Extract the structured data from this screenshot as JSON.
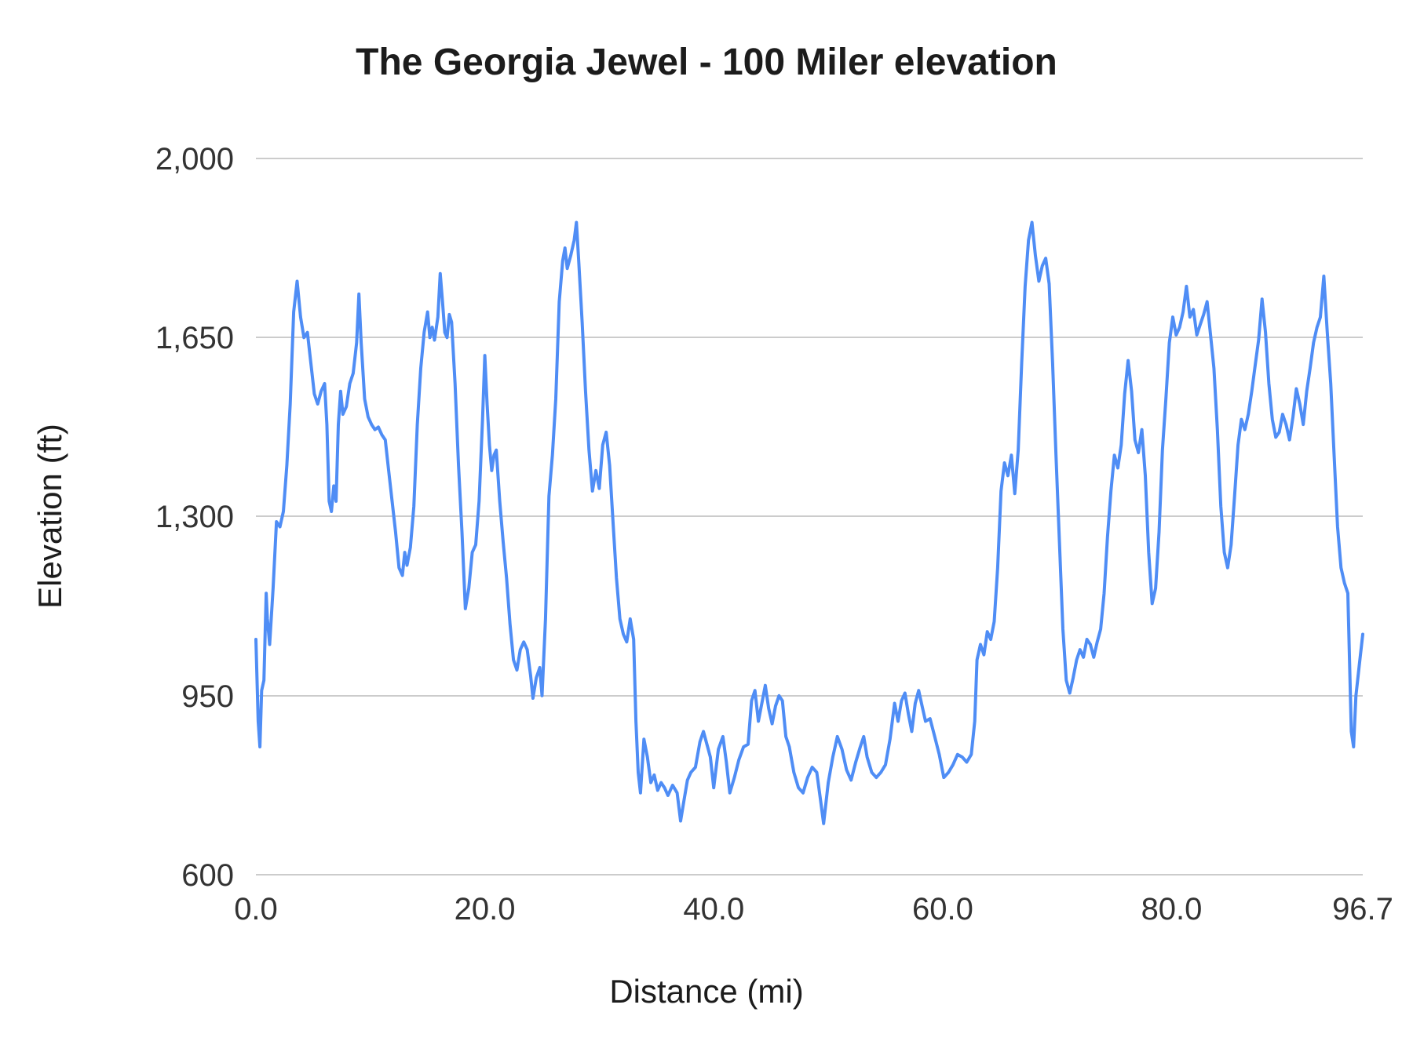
{
  "chart": {
    "title": "The Georgia Jewel - 100 Miler elevation",
    "xlabel": "Distance (mi)",
    "ylabel": "Elevation (ft)"
  },
  "chart_data": {
    "type": "line",
    "title": "The Georgia Jewel - 100 Miler elevation",
    "xlabel": "Distance (mi)",
    "ylabel": "Elevation (ft)",
    "xlim": [
      0,
      96.7
    ],
    "ylim": [
      600,
      2000
    ],
    "grid": "horizontal",
    "legend": "none",
    "line_color": "#4f8df5",
    "grid_color": "#cccccc",
    "xticks": [
      {
        "v": 0,
        "label": "0.0"
      },
      {
        "v": 20,
        "label": "20.0"
      },
      {
        "v": 40,
        "label": "40.0"
      },
      {
        "v": 60,
        "label": "60.0"
      },
      {
        "v": 80,
        "label": "80.0"
      },
      {
        "v": 96.7,
        "label": "96.7"
      }
    ],
    "yticks": [
      {
        "v": 600,
        "label": "600"
      },
      {
        "v": 950,
        "label": "950"
      },
      {
        "v": 1300,
        "label": "1,300"
      },
      {
        "v": 1650,
        "label": "1,650"
      },
      {
        "v": 2000,
        "label": "2,000"
      }
    ],
    "points": [
      [
        0,
        1060
      ],
      [
        0.2,
        900
      ],
      [
        0.35,
        850
      ],
      [
        0.5,
        960
      ],
      [
        0.7,
        980
      ],
      [
        0.9,
        1150
      ],
      [
        1.0,
        1100
      ],
      [
        1.2,
        1050
      ],
      [
        1.5,
        1160
      ],
      [
        1.8,
        1290
      ],
      [
        2.1,
        1280
      ],
      [
        2.4,
        1310
      ],
      [
        2.7,
        1400
      ],
      [
        3.0,
        1520
      ],
      [
        3.3,
        1700
      ],
      [
        3.6,
        1760
      ],
      [
        3.9,
        1690
      ],
      [
        4.2,
        1650
      ],
      [
        4.5,
        1660
      ],
      [
        4.8,
        1600
      ],
      [
        5.1,
        1540
      ],
      [
        5.4,
        1520
      ],
      [
        5.7,
        1545
      ],
      [
        6.0,
        1560
      ],
      [
        6.2,
        1480
      ],
      [
        6.4,
        1330
      ],
      [
        6.6,
        1310
      ],
      [
        6.8,
        1360
      ],
      [
        7.0,
        1330
      ],
      [
        7.2,
        1480
      ],
      [
        7.4,
        1545
      ],
      [
        7.6,
        1500
      ],
      [
        7.9,
        1515
      ],
      [
        8.2,
        1560
      ],
      [
        8.5,
        1580
      ],
      [
        8.8,
        1640
      ],
      [
        9.0,
        1735
      ],
      [
        9.2,
        1640
      ],
      [
        9.5,
        1530
      ],
      [
        9.8,
        1495
      ],
      [
        10.1,
        1480
      ],
      [
        10.4,
        1470
      ],
      [
        10.7,
        1475
      ],
      [
        11.0,
        1460
      ],
      [
        11.3,
        1450
      ],
      [
        11.6,
        1390
      ],
      [
        11.9,
        1330
      ],
      [
        12.2,
        1270
      ],
      [
        12.5,
        1200
      ],
      [
        12.8,
        1185
      ],
      [
        13.0,
        1230
      ],
      [
        13.2,
        1205
      ],
      [
        13.5,
        1240
      ],
      [
        13.8,
        1320
      ],
      [
        14.1,
        1480
      ],
      [
        14.4,
        1590
      ],
      [
        14.7,
        1660
      ],
      [
        15.0,
        1700
      ],
      [
        15.2,
        1650
      ],
      [
        15.4,
        1670
      ],
      [
        15.6,
        1645
      ],
      [
        15.9,
        1690
      ],
      [
        16.1,
        1775
      ],
      [
        16.3,
        1720
      ],
      [
        16.5,
        1660
      ],
      [
        16.7,
        1650
      ],
      [
        16.9,
        1695
      ],
      [
        17.1,
        1680
      ],
      [
        17.4,
        1560
      ],
      [
        17.7,
        1400
      ],
      [
        18.0,
        1270
      ],
      [
        18.3,
        1120
      ],
      [
        18.6,
        1160
      ],
      [
        18.9,
        1230
      ],
      [
        19.2,
        1245
      ],
      [
        19.5,
        1330
      ],
      [
        19.8,
        1490
      ],
      [
        20.0,
        1615
      ],
      [
        20.2,
        1520
      ],
      [
        20.4,
        1440
      ],
      [
        20.6,
        1390
      ],
      [
        20.8,
        1420
      ],
      [
        21.0,
        1430
      ],
      [
        21.3,
        1330
      ],
      [
        21.6,
        1250
      ],
      [
        21.9,
        1180
      ],
      [
        22.2,
        1090
      ],
      [
        22.5,
        1020
      ],
      [
        22.8,
        1000
      ],
      [
        23.1,
        1040
      ],
      [
        23.4,
        1055
      ],
      [
        23.7,
        1040
      ],
      [
        24.0,
        990
      ],
      [
        24.2,
        945
      ],
      [
        24.5,
        985
      ],
      [
        24.8,
        1005
      ],
      [
        25.0,
        950
      ],
      [
        25.3,
        1100
      ],
      [
        25.6,
        1340
      ],
      [
        25.9,
        1420
      ],
      [
        26.2,
        1530
      ],
      [
        26.5,
        1720
      ],
      [
        26.8,
        1800
      ],
      [
        27.0,
        1825
      ],
      [
        27.2,
        1785
      ],
      [
        27.5,
        1810
      ],
      [
        27.8,
        1840
      ],
      [
        28.0,
        1875
      ],
      [
        28.2,
        1800
      ],
      [
        28.5,
        1680
      ],
      [
        28.8,
        1545
      ],
      [
        29.1,
        1430
      ],
      [
        29.4,
        1350
      ],
      [
        29.7,
        1390
      ],
      [
        30.0,
        1355
      ],
      [
        30.3,
        1440
      ],
      [
        30.6,
        1465
      ],
      [
        30.9,
        1400
      ],
      [
        31.2,
        1290
      ],
      [
        31.5,
        1180
      ],
      [
        31.8,
        1100
      ],
      [
        32.1,
        1070
      ],
      [
        32.4,
        1055
      ],
      [
        32.7,
        1100
      ],
      [
        33.0,
        1060
      ],
      [
        33.2,
        900
      ],
      [
        33.4,
        800
      ],
      [
        33.6,
        760
      ],
      [
        33.9,
        865
      ],
      [
        34.2,
        830
      ],
      [
        34.5,
        780
      ],
      [
        34.8,
        795
      ],
      [
        35.1,
        765
      ],
      [
        35.4,
        780
      ],
      [
        35.7,
        770
      ],
      [
        36.0,
        755
      ],
      [
        36.4,
        775
      ],
      [
        36.8,
        760
      ],
      [
        37.1,
        705
      ],
      [
        37.4,
        745
      ],
      [
        37.7,
        785
      ],
      [
        38.0,
        800
      ],
      [
        38.4,
        810
      ],
      [
        38.8,
        860
      ],
      [
        39.1,
        880
      ],
      [
        39.4,
        855
      ],
      [
        39.7,
        830
      ],
      [
        40.0,
        770
      ],
      [
        40.4,
        845
      ],
      [
        40.8,
        870
      ],
      [
        41.1,
        820
      ],
      [
        41.4,
        760
      ],
      [
        41.8,
        790
      ],
      [
        42.2,
        825
      ],
      [
        42.6,
        850
      ],
      [
        43.0,
        855
      ],
      [
        43.3,
        940
      ],
      [
        43.6,
        960
      ],
      [
        43.9,
        900
      ],
      [
        44.2,
        935
      ],
      [
        44.5,
        970
      ],
      [
        44.8,
        925
      ],
      [
        45.1,
        895
      ],
      [
        45.4,
        930
      ],
      [
        45.7,
        950
      ],
      [
        46.0,
        940
      ],
      [
        46.3,
        870
      ],
      [
        46.6,
        850
      ],
      [
        47.0,
        800
      ],
      [
        47.4,
        770
      ],
      [
        47.8,
        760
      ],
      [
        48.2,
        790
      ],
      [
        48.6,
        810
      ],
      [
        49.0,
        800
      ],
      [
        49.3,
        750
      ],
      [
        49.6,
        700
      ],
      [
        50.0,
        780
      ],
      [
        50.4,
        830
      ],
      [
        50.8,
        870
      ],
      [
        51.2,
        845
      ],
      [
        51.6,
        805
      ],
      [
        52.0,
        785
      ],
      [
        52.4,
        820
      ],
      [
        52.8,
        850
      ],
      [
        53.1,
        870
      ],
      [
        53.4,
        830
      ],
      [
        53.8,
        800
      ],
      [
        54.2,
        790
      ],
      [
        54.6,
        800
      ],
      [
        55.0,
        815
      ],
      [
        55.4,
        865
      ],
      [
        55.8,
        935
      ],
      [
        56.1,
        900
      ],
      [
        56.4,
        940
      ],
      [
        56.7,
        955
      ],
      [
        57.0,
        915
      ],
      [
        57.3,
        880
      ],
      [
        57.6,
        935
      ],
      [
        57.9,
        960
      ],
      [
        58.2,
        930
      ],
      [
        58.5,
        900
      ],
      [
        58.9,
        905
      ],
      [
        59.3,
        870
      ],
      [
        59.7,
        835
      ],
      [
        60.1,
        790
      ],
      [
        60.5,
        800
      ],
      [
        60.9,
        815
      ],
      [
        61.3,
        835
      ],
      [
        61.7,
        830
      ],
      [
        62.1,
        820
      ],
      [
        62.5,
        835
      ],
      [
        62.8,
        900
      ],
      [
        63.0,
        1020
      ],
      [
        63.3,
        1050
      ],
      [
        63.6,
        1030
      ],
      [
        63.9,
        1075
      ],
      [
        64.2,
        1060
      ],
      [
        64.5,
        1095
      ],
      [
        64.8,
        1200
      ],
      [
        65.1,
        1350
      ],
      [
        65.4,
        1405
      ],
      [
        65.7,
        1380
      ],
      [
        66.0,
        1420
      ],
      [
        66.3,
        1345
      ],
      [
        66.6,
        1430
      ],
      [
        66.9,
        1600
      ],
      [
        67.2,
        1750
      ],
      [
        67.5,
        1840
      ],
      [
        67.8,
        1875
      ],
      [
        68.1,
        1810
      ],
      [
        68.4,
        1760
      ],
      [
        68.7,
        1790
      ],
      [
        69.0,
        1805
      ],
      [
        69.3,
        1755
      ],
      [
        69.6,
        1600
      ],
      [
        69.9,
        1420
      ],
      [
        70.2,
        1250
      ],
      [
        70.5,
        1080
      ],
      [
        70.8,
        980
      ],
      [
        71.1,
        955
      ],
      [
        71.4,
        985
      ],
      [
        71.7,
        1020
      ],
      [
        72.0,
        1040
      ],
      [
        72.3,
        1025
      ],
      [
        72.6,
        1060
      ],
      [
        72.9,
        1050
      ],
      [
        73.2,
        1025
      ],
      [
        73.5,
        1055
      ],
      [
        73.8,
        1080
      ],
      [
        74.1,
        1150
      ],
      [
        74.4,
        1260
      ],
      [
        74.7,
        1350
      ],
      [
        75.0,
        1420
      ],
      [
        75.3,
        1395
      ],
      [
        75.6,
        1440
      ],
      [
        75.9,
        1540
      ],
      [
        76.2,
        1605
      ],
      [
        76.5,
        1545
      ],
      [
        76.8,
        1450
      ],
      [
        77.1,
        1425
      ],
      [
        77.4,
        1470
      ],
      [
        77.7,
        1380
      ],
      [
        78.0,
        1230
      ],
      [
        78.3,
        1130
      ],
      [
        78.6,
        1160
      ],
      [
        78.9,
        1270
      ],
      [
        79.2,
        1430
      ],
      [
        79.5,
        1530
      ],
      [
        79.8,
        1640
      ],
      [
        80.1,
        1690
      ],
      [
        80.4,
        1655
      ],
      [
        80.7,
        1670
      ],
      [
        81.0,
        1700
      ],
      [
        81.3,
        1750
      ],
      [
        81.6,
        1690
      ],
      [
        81.9,
        1705
      ],
      [
        82.2,
        1655
      ],
      [
        82.5,
        1675
      ],
      [
        82.8,
        1695
      ],
      [
        83.1,
        1720
      ],
      [
        83.4,
        1655
      ],
      [
        83.7,
        1590
      ],
      [
        84.0,
        1470
      ],
      [
        84.3,
        1320
      ],
      [
        84.6,
        1230
      ],
      [
        84.9,
        1200
      ],
      [
        85.2,
        1245
      ],
      [
        85.5,
        1340
      ],
      [
        85.8,
        1440
      ],
      [
        86.1,
        1490
      ],
      [
        86.4,
        1470
      ],
      [
        86.7,
        1500
      ],
      [
        87.0,
        1545
      ],
      [
        87.3,
        1595
      ],
      [
        87.6,
        1645
      ],
      [
        87.9,
        1725
      ],
      [
        88.2,
        1660
      ],
      [
        88.5,
        1560
      ],
      [
        88.8,
        1490
      ],
      [
        89.1,
        1455
      ],
      [
        89.4,
        1465
      ],
      [
        89.7,
        1500
      ],
      [
        90.0,
        1480
      ],
      [
        90.3,
        1450
      ],
      [
        90.6,
        1495
      ],
      [
        90.9,
        1550
      ],
      [
        91.2,
        1520
      ],
      [
        91.5,
        1480
      ],
      [
        91.8,
        1545
      ],
      [
        92.1,
        1590
      ],
      [
        92.4,
        1640
      ],
      [
        92.7,
        1670
      ],
      [
        93.0,
        1690
      ],
      [
        93.3,
        1770
      ],
      [
        93.6,
        1660
      ],
      [
        93.9,
        1560
      ],
      [
        94.2,
        1420
      ],
      [
        94.5,
        1280
      ],
      [
        94.8,
        1200
      ],
      [
        95.1,
        1170
      ],
      [
        95.4,
        1150
      ],
      [
        95.7,
        880
      ],
      [
        95.9,
        850
      ],
      [
        96.1,
        950
      ],
      [
        96.4,
        1010
      ],
      [
        96.7,
        1070
      ]
    ]
  }
}
